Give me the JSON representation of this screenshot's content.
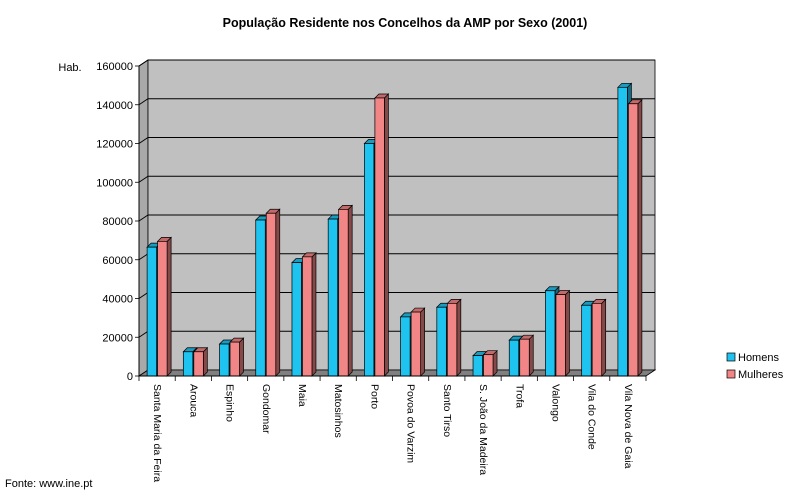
{
  "chart_data": {
    "type": "bar",
    "title": "População Residente nos Concelhos da AMP por Sexo (2001)",
    "ylabel": "Hab.",
    "xlabel": "",
    "ylim": [
      0,
      160000
    ],
    "yticks": [
      "0",
      "20000",
      "40000",
      "60000",
      "80000",
      "100000",
      "120000",
      "140000",
      "160000"
    ],
    "ytick_values": [
      0,
      20000,
      40000,
      60000,
      80000,
      100000,
      120000,
      140000,
      160000
    ],
    "grid": true,
    "legend_position": "right",
    "categories": [
      "Santa Maria da Feira",
      "Arouca",
      "Espinho",
      "Gondomar",
      "Maia",
      "Matosinhos",
      "Porto",
      "Povoa do Varzim",
      "Santo Tirso",
      "S. João da Madeira",
      "Trofa",
      "Valongo",
      "Vila do Conde",
      "Vila Nova de Gaia"
    ],
    "series": [
      {
        "name": "Homens",
        "color": "#1ec3f0",
        "values": [
          66500,
          12500,
          16500,
          80500,
          58500,
          81000,
          120000,
          30500,
          35500,
          10500,
          18500,
          44000,
          36500,
          149000
        ]
      },
      {
        "name": "Mulheres",
        "color": "#f28585",
        "values": [
          69500,
          12500,
          17500,
          84000,
          61500,
          86000,
          143500,
          33000,
          37500,
          11000,
          19000,
          42000,
          37500,
          140500
        ]
      }
    ],
    "source": "Fonte: www.ine.pt"
  }
}
